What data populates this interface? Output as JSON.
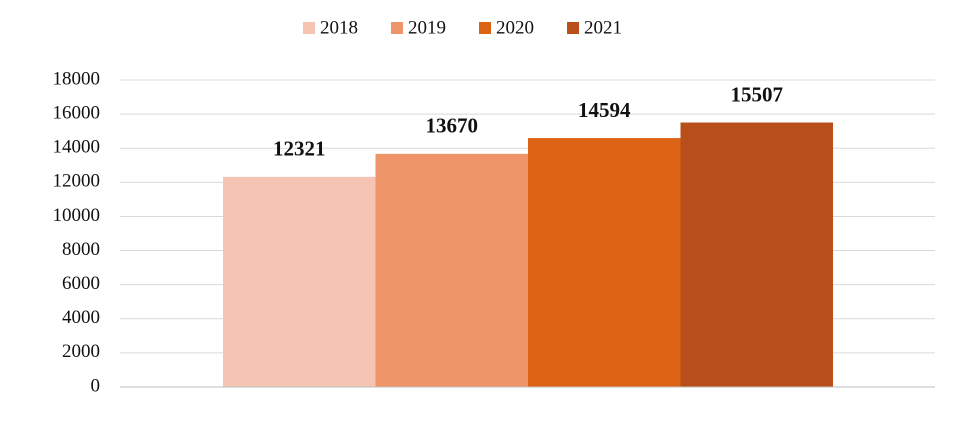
{
  "chart_data": {
    "type": "bar",
    "categories": [
      null
    ],
    "series": [
      {
        "name": "2018",
        "color": "#f5c4b2",
        "values": [
          12321
        ]
      },
      {
        "name": "2019",
        "color": "#ef956a",
        "values": [
          13670
        ]
      },
      {
        "name": "2020",
        "color": "#dc6214",
        "values": [
          14594
        ]
      },
      {
        "name": "2021",
        "color": "#b84e1a",
        "values": [
          15507
        ]
      }
    ],
    "ylim": [
      0,
      18000
    ],
    "yticks": [
      0,
      2000,
      4000,
      6000,
      8000,
      10000,
      12000,
      14000,
      16000,
      18000
    ],
    "grid": true,
    "legend": "top"
  }
}
